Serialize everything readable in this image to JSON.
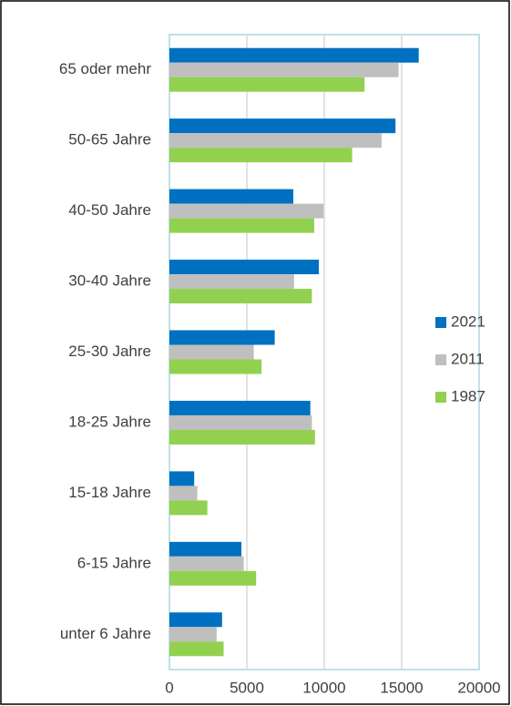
{
  "chart_data": {
    "type": "hbar",
    "categories": [
      "65 oder mehr",
      "50-65 Jahre",
      "40-50 Jahre",
      "30-40 Jahre",
      "25-30 Jahre",
      "18-25 Jahre",
      "15-18 Jahre",
      "6-15 Jahre",
      "unter 6 Jahre"
    ],
    "series": [
      {
        "name": "2021",
        "color": "#0070c0",
        "values": [
          16100,
          14600,
          8000,
          9650,
          6800,
          9100,
          1600,
          4650,
          3400
        ]
      },
      {
        "name": "2011",
        "color": "#bfbfbf",
        "values": [
          14800,
          13700,
          9950,
          8050,
          5450,
          9200,
          1800,
          4800,
          3050
        ]
      },
      {
        "name": "1987",
        "color": "#92d050",
        "values": [
          12600,
          11800,
          9350,
          9200,
          5950,
          9400,
          2450,
          5600,
          3500
        ]
      }
    ],
    "xlim": [
      0,
      20000
    ],
    "xticks": [
      0,
      5000,
      10000,
      15000,
      20000
    ],
    "grid": true,
    "legend": "right"
  }
}
